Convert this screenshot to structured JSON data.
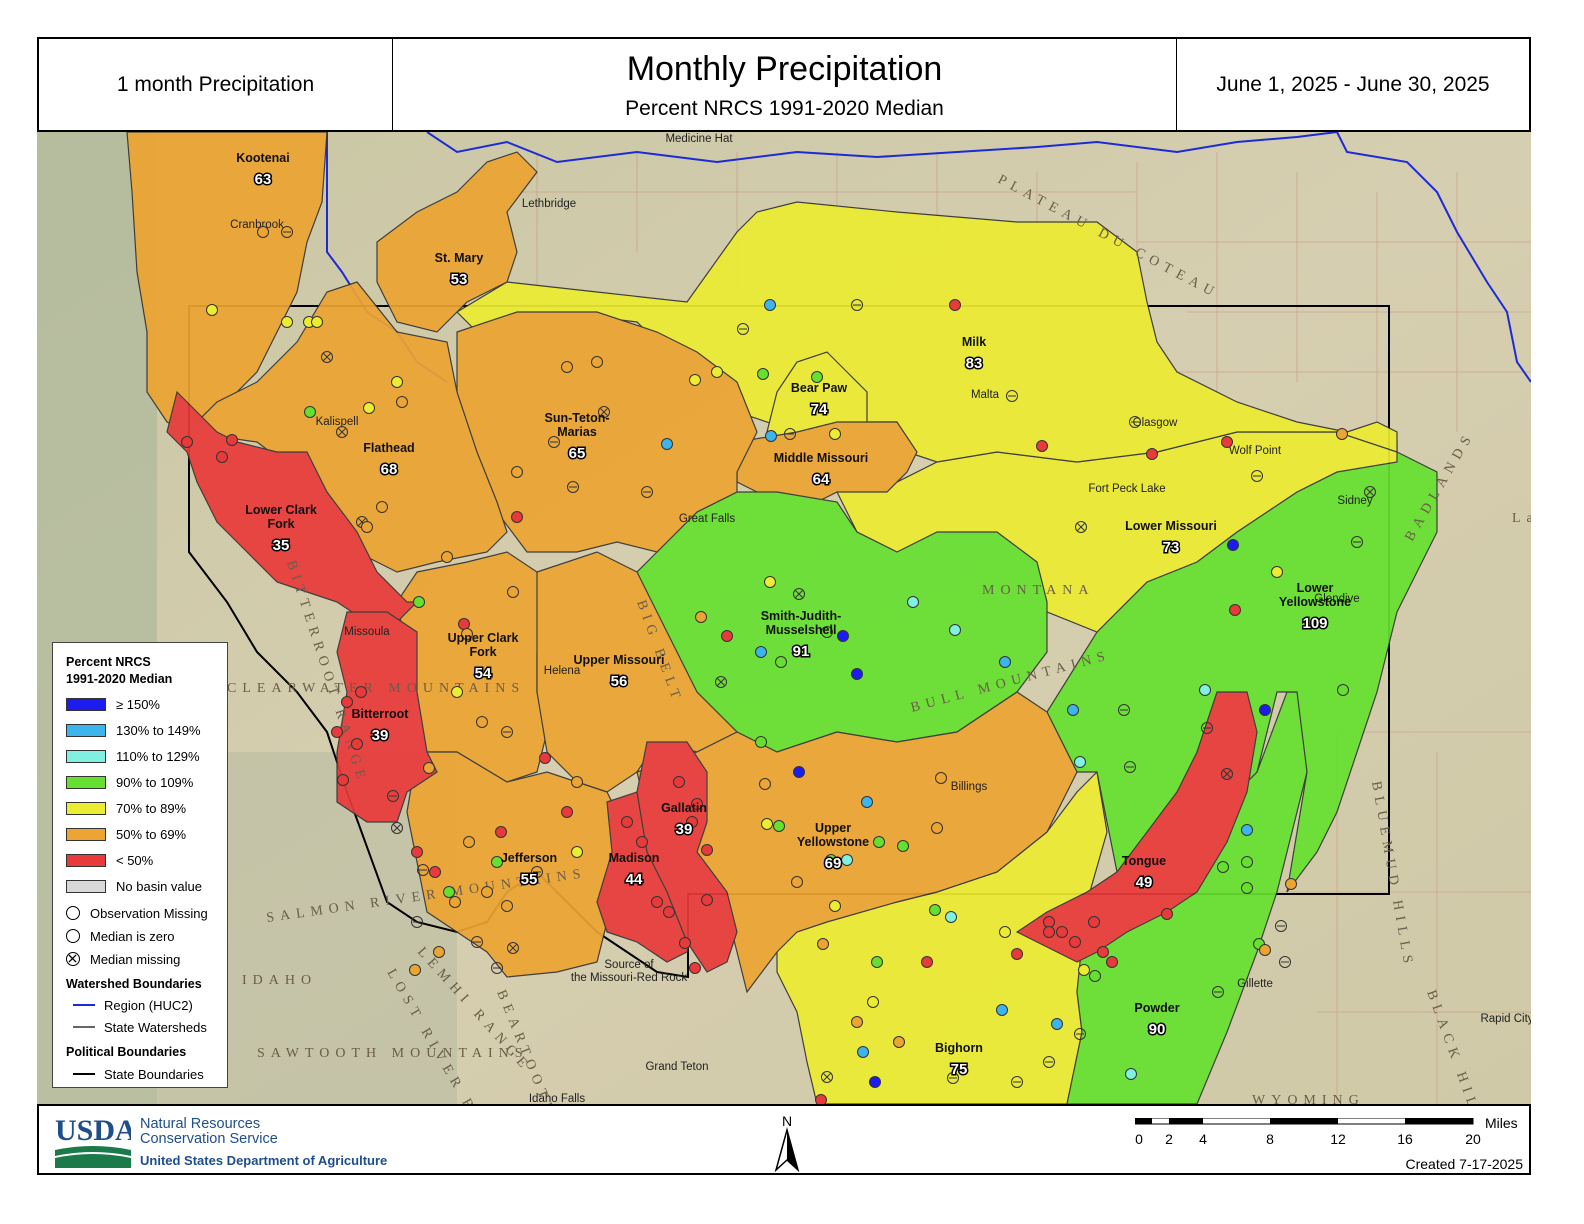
{
  "header": {
    "left": "1 month Precipitation",
    "title": "Monthly Precipitation",
    "subtitle": "Percent NRCS 1991-2020 Median",
    "date_range": "June 1, 2025 - June 30, 2025"
  },
  "colors": {
    "ge150": "#1c1cf0",
    "130to149": "#3cb4ec",
    "110to129": "#80f0e0",
    "90to109": "#66e030",
    "70to89": "#ecec32",
    "50to69": "#eca432",
    "lt50": "#e83a3a",
    "nobasin": "#d8d8d8"
  },
  "basins": [
    {
      "name": "Kootenai",
      "value": "63",
      "class": "50to69"
    },
    {
      "name": "St. Mary",
      "value": "53",
      "class": "50to69"
    },
    {
      "name": "Flathead",
      "value": "68",
      "class": "50to69"
    },
    {
      "name": "Sun-Teton-\nMarias",
      "value": "65",
      "class": "50to69"
    },
    {
      "name": "Bear Paw",
      "value": "74",
      "class": "70to89"
    },
    {
      "name": "Milk",
      "value": "83",
      "class": "70to89"
    },
    {
      "name": "Middle Missouri",
      "value": "64",
      "class": "50to69"
    },
    {
      "name": "Lower Clark\nFork",
      "value": "35",
      "class": "lt50"
    },
    {
      "name": "Lower Missouri",
      "value": "73",
      "class": "70to89"
    },
    {
      "name": "Smith-Judith-\nMusselshell",
      "value": "91",
      "class": "90to109"
    },
    {
      "name": "Upper Clark\nFork",
      "value": "54",
      "class": "50to69"
    },
    {
      "name": "Upper Missouri",
      "value": "56",
      "class": "50to69"
    },
    {
      "name": "Lower\nYellowstone",
      "value": "109",
      "class": "90to109"
    },
    {
      "name": "Bitterroot",
      "value": "39",
      "class": "lt50"
    },
    {
      "name": "Gallatin",
      "value": "39",
      "class": "lt50"
    },
    {
      "name": "Upper\nYellowstone",
      "value": "69",
      "class": "50to69"
    },
    {
      "name": "Jefferson",
      "value": "55",
      "class": "50to69"
    },
    {
      "name": "Madison",
      "value": "44",
      "class": "lt50"
    },
    {
      "name": "Tongue",
      "value": "49",
      "class": "lt50"
    },
    {
      "name": "Powder",
      "value": "90",
      "class": "90to109"
    },
    {
      "name": "Bighorn",
      "value": "75",
      "class": "70to89"
    }
  ],
  "places": [
    "Medicine Hat",
    "Lethbridge",
    "Cranbrook",
    "Kalispell",
    "Missoula",
    "Helena",
    "Great Falls",
    "Malta",
    "Glasgow",
    "Wolf Point",
    "Sidney",
    "Glendive",
    "Billings",
    "Gillette",
    "Rapid City",
    "Idaho Falls",
    "Grand Teton",
    "Source of\nthe Missouri-Red Rock",
    "Fort Peck Lake"
  ],
  "terrain_labels": [
    "PLATEAU DU COTEAU",
    "MONTANA",
    "IDAHO",
    "WYOMING",
    "BITTERROOT RANGE",
    "BADLANDS",
    "BIG BELT",
    "LEMHI RANGE",
    "SALMON RIVER MOUNTAINS",
    "CLEARWATER MOUNTAINS",
    "BLUEMUD HILLS",
    "BLACK HILLS",
    "SAWTOOTH MOUNTAINS",
    "LOST RIVER RANGE",
    "Lake Sakakawea",
    "BULL MOUNTAINS",
    "BEARTOOTH"
  ],
  "legend": {
    "title_line1": "Percent NRCS",
    "title_line2": "1991-2020 Median",
    "classes": [
      {
        "label": "≥ 150%",
        "color_key": "ge150"
      },
      {
        "label": "130% to 149%",
        "color_key": "130to149"
      },
      {
        "label": "110% to 129%",
        "color_key": "110to129"
      },
      {
        "label": "90% to 109%",
        "color_key": "90to109"
      },
      {
        "label": "70% to 89%",
        "color_key": "70to89"
      },
      {
        "label": "50% to 69%",
        "color_key": "50to69"
      },
      {
        "label": "< 50%",
        "color_key": "lt50"
      },
      {
        "label": "No basin value",
        "color_key": "nobasin"
      }
    ],
    "obs_missing": "Observation Missing",
    "median_zero": "Median is zero",
    "median_missing": "Median missing",
    "watershed_title": "Watershed Boundaries",
    "region": "Region (HUC2)",
    "state_watersheds": "State Watersheds",
    "political_title": "Political Boundaries",
    "state_boundaries": "State Boundaries"
  },
  "footer": {
    "usda": "USDA",
    "agency_line1": "Natural Resources",
    "agency_line2": "Conservation Service",
    "department": "United States Department of Agriculture",
    "north": "N",
    "scale_unit": "Miles",
    "scale_ticks": [
      "0",
      "2",
      "4",
      "8",
      "12",
      "16",
      "20"
    ],
    "created": "Created 7-17-2025"
  }
}
